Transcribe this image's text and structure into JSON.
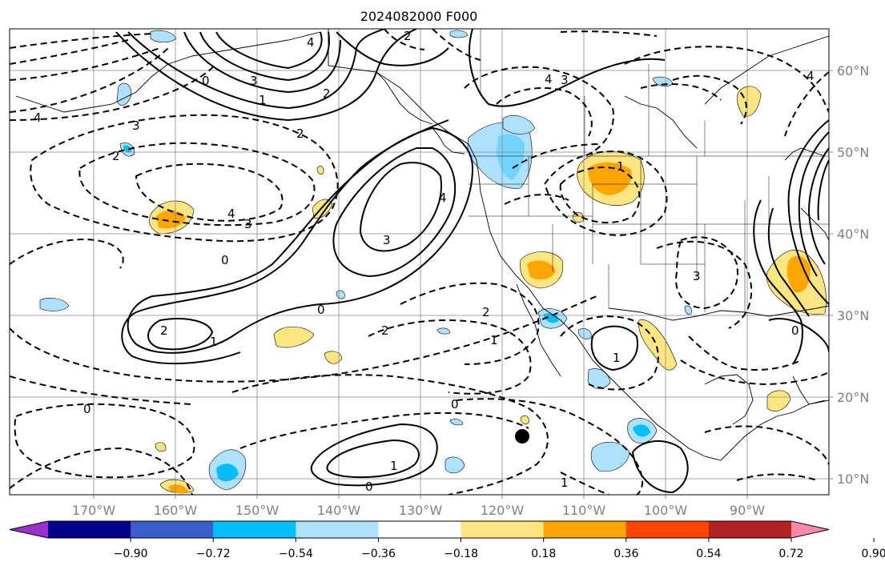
{
  "title": "2024082000 F000",
  "map": {
    "lat_labels": [
      "60°N",
      "50°N",
      "40°N",
      "30°N",
      "20°N",
      "10°N"
    ],
    "lon_labels": [
      "170°W",
      "160°W",
      "150°W",
      "140°W",
      "130°W",
      "120°W",
      "110°W",
      "100°W",
      "90°W"
    ],
    "grid": true,
    "contour_labels": [
      "4",
      "3",
      "2",
      "1",
      "0",
      "4",
      "3",
      "2",
      "4",
      "3",
      "2",
      "0",
      "4",
      "3",
      "2",
      "1",
      "0",
      "2",
      "2",
      "1",
      "0",
      "0",
      "1",
      "0",
      "1",
      "3",
      "4",
      "4",
      "3",
      "2",
      "1",
      "0",
      "1"
    ],
    "marker": "filled-circle"
  },
  "colorbar": {
    "ticks": [
      "−0.90",
      "−0.72",
      "−0.54",
      "−0.36",
      "−0.18",
      "0.18",
      "0.36",
      "0.54",
      "0.72",
      "0.90"
    ],
    "colors": [
      "#9b30d0",
      "#00008b",
      "#3a5fcd",
      "#00bfff",
      "#aee0ff",
      "#ffffff",
      "#ffe680",
      "#ffa500",
      "#ff4500",
      "#b22222",
      "#ff88aa"
    ]
  }
}
